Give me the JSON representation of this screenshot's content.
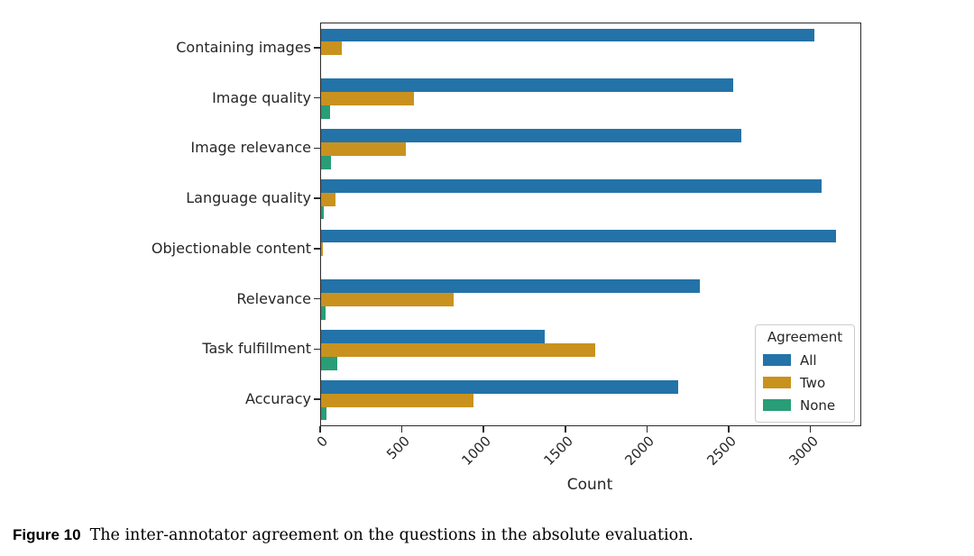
{
  "chart_data": {
    "type": "bar",
    "orientation": "horizontal",
    "title": "",
    "xlabel": "Count",
    "ylabel": "",
    "xlim": [
      0,
      3300
    ],
    "xticks": [
      0,
      500,
      1000,
      1500,
      2000,
      2500,
      3000
    ],
    "grid": false,
    "categories": [
      "Containing images",
      "Image quality",
      "Image relevance",
      "Language quality",
      "Objectionable content",
      "Relevance",
      "Task fulfillment",
      "Accuracy"
    ],
    "series": [
      {
        "name": "All",
        "color": "#2373a8",
        "values": [
          3020,
          2520,
          2570,
          3060,
          3150,
          2320,
          1370,
          2185
        ]
      },
      {
        "name": "Two",
        "color": "#c9921e",
        "values": [
          125,
          570,
          520,
          90,
          10,
          810,
          1680,
          935
        ]
      },
      {
        "name": "None",
        "color": "#299d77",
        "values": [
          0,
          55,
          60,
          15,
          0,
          30,
          100,
          35
        ]
      }
    ],
    "legend": {
      "title": "Agreement",
      "position": "lower right"
    }
  },
  "caption": {
    "label": "Figure 10",
    "text": "The inter-annotator agreement on the questions in the absolute evaluation."
  }
}
